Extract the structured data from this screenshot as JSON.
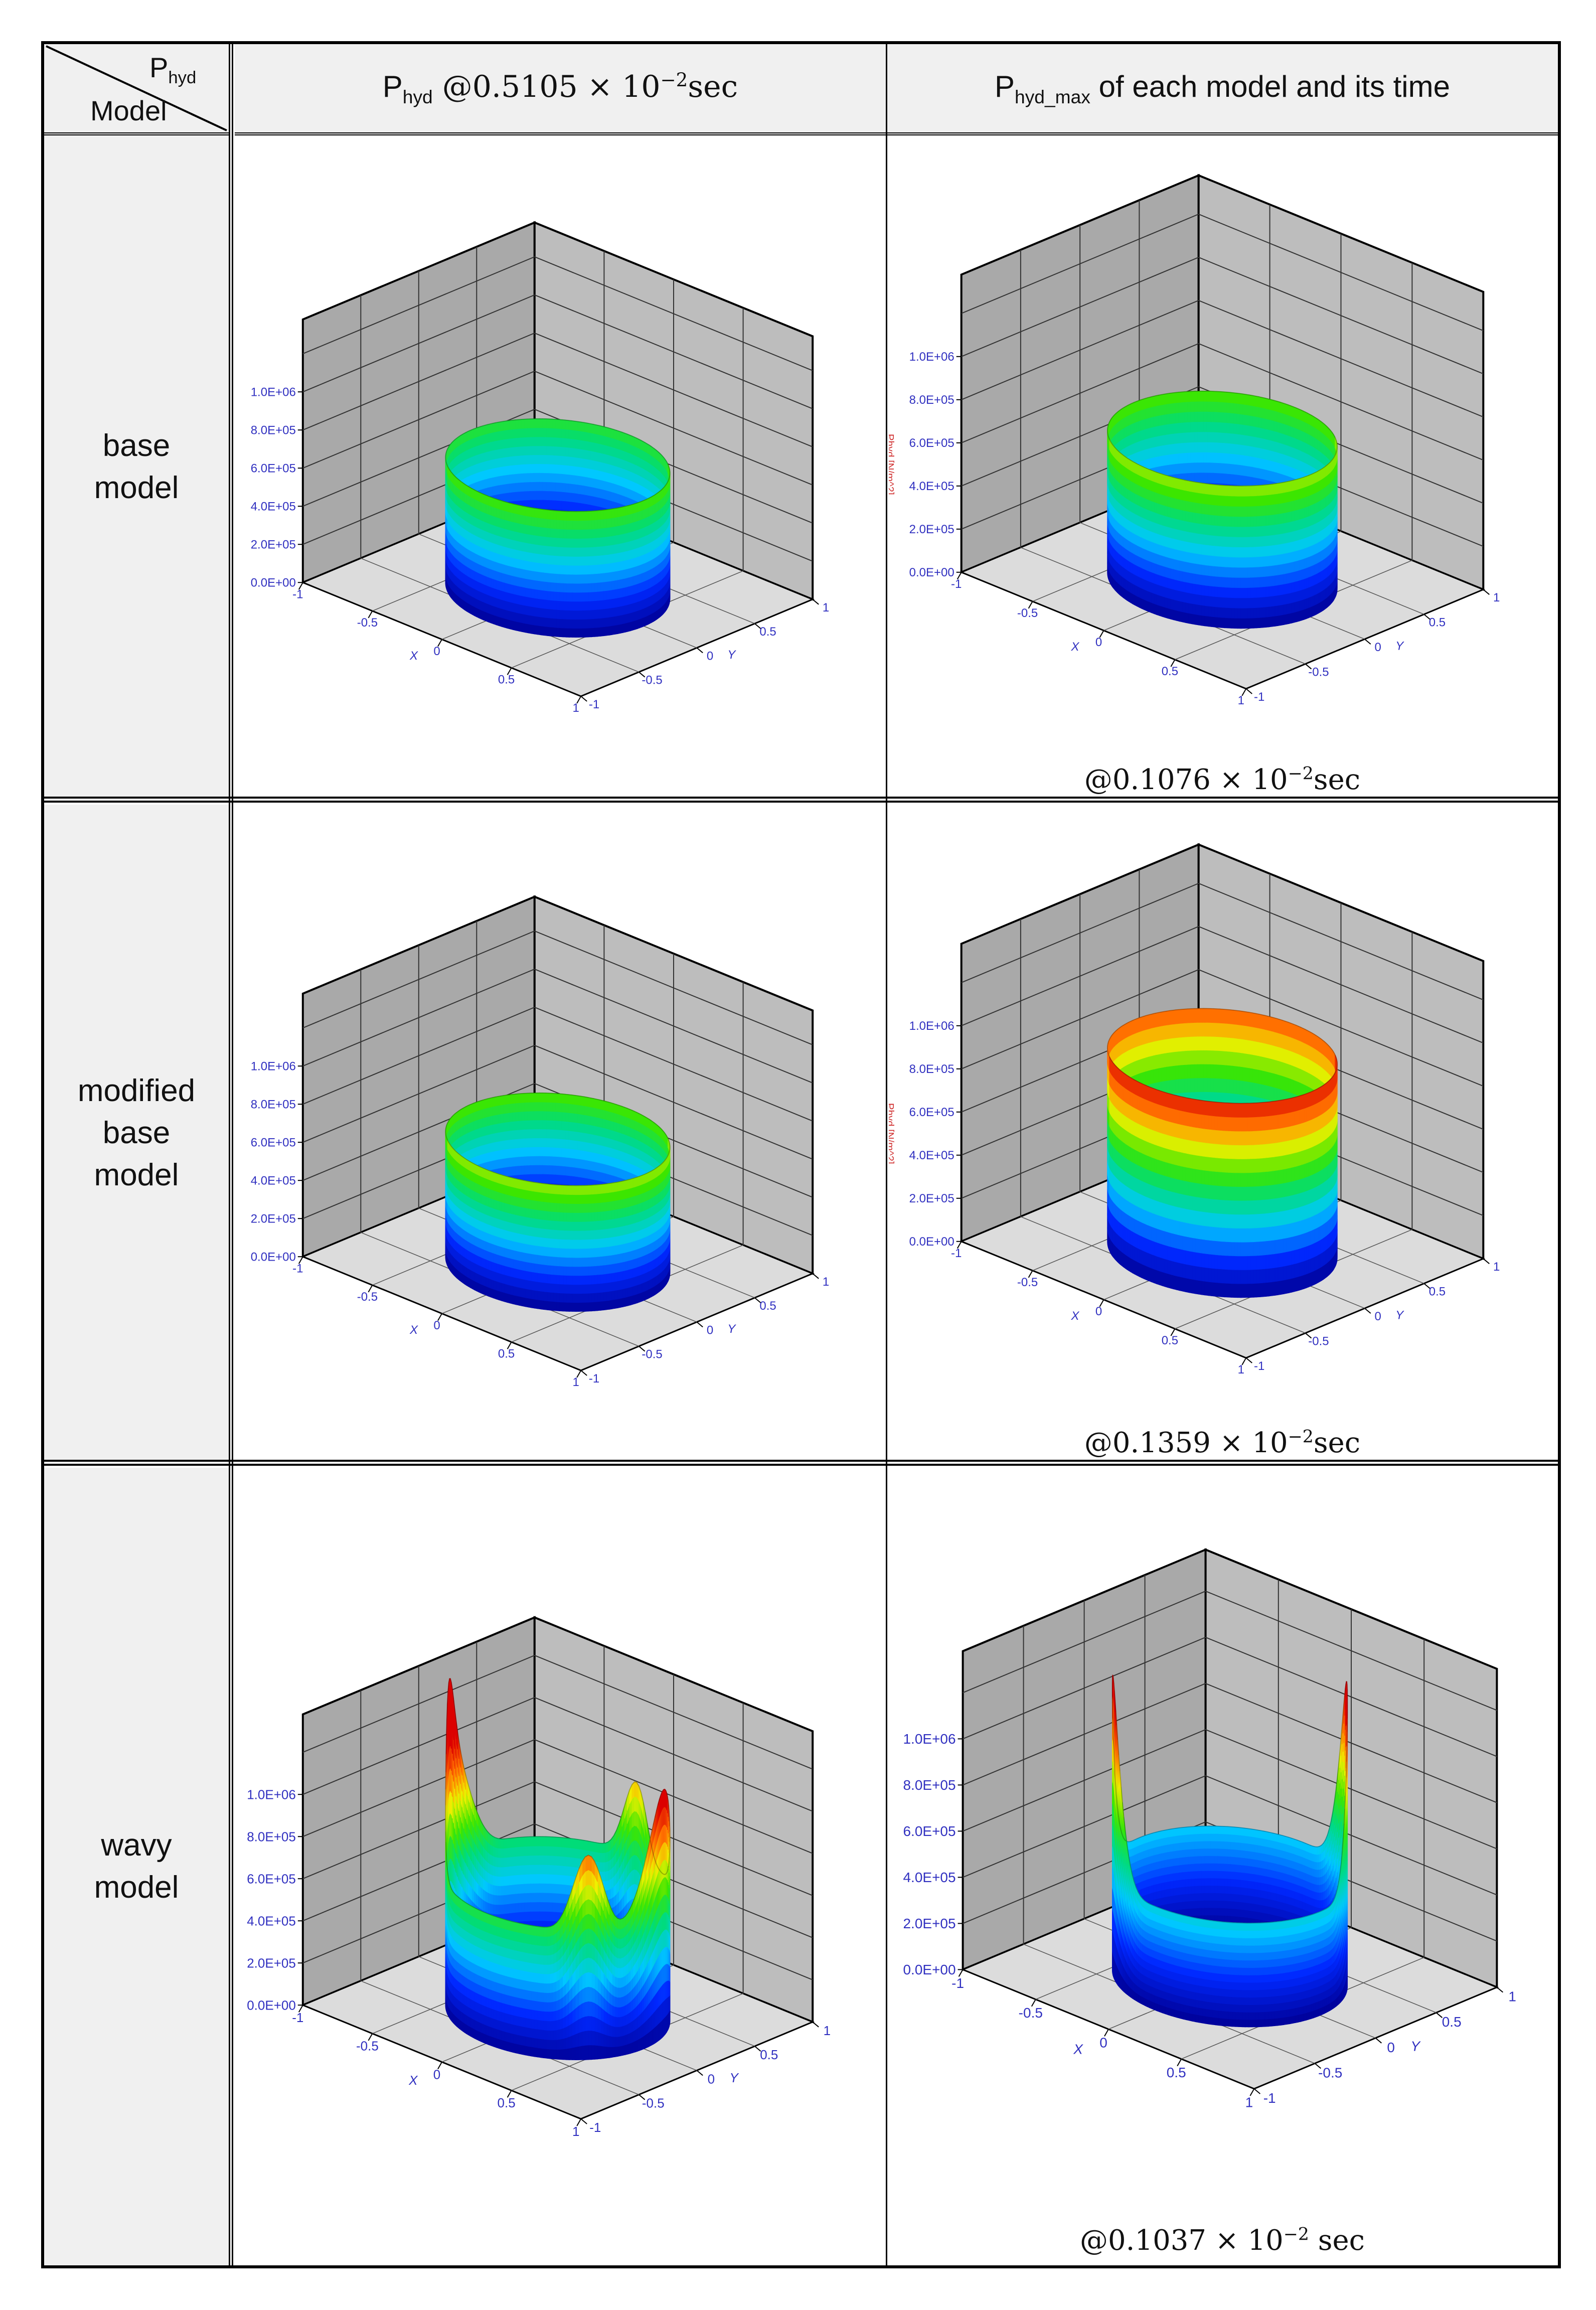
{
  "table": {
    "corner": {
      "top_main": "P",
      "top_sub": "hyd",
      "bottom": "Model"
    },
    "col1": {
      "main": "P",
      "sub": "hyd",
      "rest_a": " @0.5105 × 10",
      "exp": "−2",
      "rest_b": "sec"
    },
    "col2": {
      "main": "P",
      "sub": "hyd_max",
      "rest": " of each model and its time"
    },
    "rows": [
      {
        "label": "base\nmodel",
        "caption": {
          "a": "@0.1076 × 10",
          "exp": "−2",
          "b": "sec"
        }
      },
      {
        "label": "modified\nbase\nmodel",
        "caption": {
          "a": "@0.1359 × 10",
          "exp": "−2",
          "b": "sec"
        }
      },
      {
        "label": "wavy\nmodel",
        "caption": {
          "a": "@0.1037 × 10",
          "exp": "−2",
          "b": "  sec"
        }
      }
    ]
  },
  "plot_axes": {
    "z_ticks": [
      "1.0E+06",
      "8.0E+05",
      "6.0E+05",
      "4.0E+05",
      "2.0E+05",
      "0.0E+00"
    ],
    "z_label": "Phyd [N/m^2]",
    "x_ticks": [
      "-1",
      "-0.5",
      "0",
      "0.5",
      "1"
    ],
    "x_label": "X",
    "y_ticks": [
      "1",
      "0.5",
      "0",
      "-0.5",
      "-1"
    ],
    "y_label": "Y"
  },
  "colors": {
    "tick_text": "#3030c0",
    "z_label": "#d03030",
    "wall_left": "#a9a9a9",
    "wall_right": "#bdbdbd",
    "floor": "#dcdcdc"
  },
  "chart_data": [
    {
      "type": "surface",
      "row": "base model",
      "column": "P_hyd @0.5105e-2 sec",
      "zlim": [
        0,
        1000000
      ],
      "max_pressure_approx": 650000,
      "shape": "uniform ring"
    },
    {
      "type": "surface",
      "row": "base model",
      "column": "P_hyd_max",
      "zlim": [
        0,
        1000000
      ],
      "max_pressure_approx": 650000,
      "shape": "uniform ring"
    },
    {
      "type": "surface",
      "row": "modified base model",
      "column": "P_hyd @0.5105e-2 sec",
      "zlim": [
        0,
        1000000
      ],
      "max_pressure_approx": 640000,
      "shape": "uniform ring"
    },
    {
      "type": "surface",
      "row": "modified base model",
      "column": "P_hyd_max",
      "zlim": [
        0,
        1000000
      ],
      "max_pressure_approx": 900000,
      "shape": "uniform ring"
    },
    {
      "type": "surface",
      "row": "wavy model",
      "column": "P_hyd @0.5105e-2 sec",
      "zlim": [
        0,
        1000000
      ],
      "max_pressure_approx": 1200000,
      "shape": "wavy ring with peaks"
    },
    {
      "type": "surface",
      "row": "wavy model",
      "column": "P_hyd_max",
      "zlim": [
        0,
        1000000
      ],
      "max_pressure_approx": 1300000,
      "shape": "wavy ring with peaks"
    }
  ]
}
